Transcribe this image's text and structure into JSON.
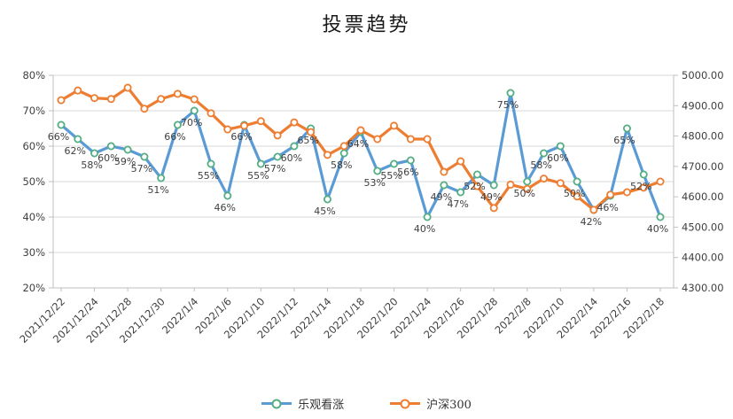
{
  "title": "投票趋势",
  "chart_data": {
    "type": "line",
    "title": "投票趋势",
    "x_labels": [
      "2021/12/22",
      "2021/12/24",
      "2021/12/28",
      "2021/12/30",
      "2022/1/4",
      "2022/1/6",
      "2022/1/10",
      "2022/1/12",
      "2022/1/14",
      "2022/1/18",
      "2022/1/20",
      "2022/1/24",
      "2022/1/26",
      "2022/1/28",
      "2022/2/8",
      "2022/2/10",
      "2022/2/14",
      "2022/2/16",
      "2022/2/18"
    ],
    "x_label_every": 2,
    "n_points": 37,
    "series": [
      {
        "name": "乐观看涨",
        "axis": "left",
        "unit": "%",
        "color": "#5B9BD5",
        "marker_stroke": "#53AE82",
        "data_labels": true,
        "values": [
          66,
          62,
          58,
          60,
          59,
          57,
          51,
          66,
          70,
          55,
          46,
          66,
          55,
          57,
          60,
          65,
          45,
          58,
          64,
          53,
          55,
          56,
          40,
          49,
          47,
          52,
          49,
          75,
          50,
          58,
          60,
          50,
          42,
          46,
          65,
          52,
          40
        ]
      },
      {
        "name": "沪深300",
        "axis": "right",
        "unit": "",
        "color": "#ED7D31",
        "marker_stroke": "#ED7D31",
        "data_labels": false,
        "values": [
          4918,
          4950,
          4925,
          4922,
          4959,
          4890,
          4922,
          4939,
          4921,
          4875,
          4822,
          4834,
          4849,
          4802,
          4845,
          4813,
          4738,
          4767,
          4819,
          4790,
          4834,
          4790,
          4790,
          4682,
          4717,
          4635,
          4563,
          4640,
          4626,
          4660,
          4645,
          4601,
          4557,
          4607,
          4615,
          4630,
          4650
        ]
      }
    ],
    "left_axis": {
      "min": 20,
      "max": 80,
      "step": 10,
      "tick_labels": [
        "80%",
        "70%",
        "60%",
        "50%",
        "40%",
        "30%",
        "20%"
      ]
    },
    "right_axis": {
      "min": 4300,
      "max": 5000,
      "step": 100,
      "tick_labels": [
        "5000.00",
        "4900.00",
        "4800.00",
        "4700.00",
        "4600.00",
        "4500.00",
        "4400.00",
        "4300.00"
      ]
    },
    "legend": [
      "乐观看涨",
      "沪深300"
    ],
    "grid": true,
    "legend_position": "bottom",
    "colors": {
      "grid": "#D9D9D9",
      "axis_line": "#BFBFBF",
      "axis_text": "#404040",
      "data_label_text": "#3F3F3F"
    }
  }
}
